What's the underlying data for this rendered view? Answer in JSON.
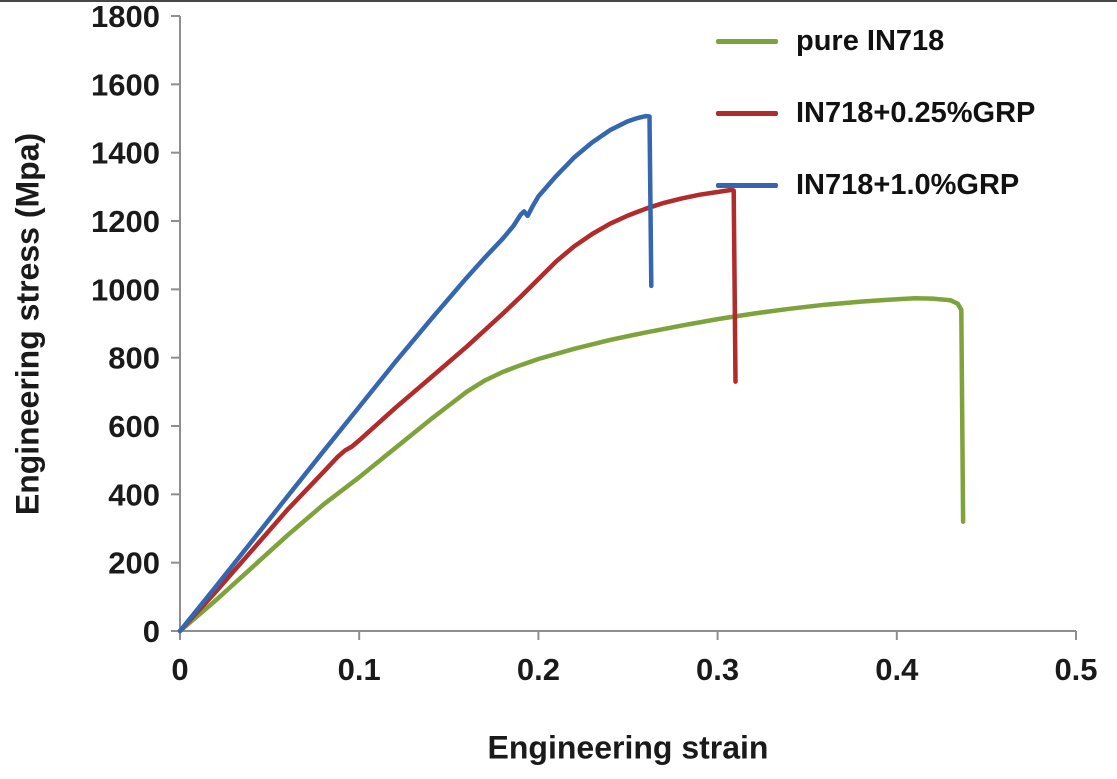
{
  "chart_data": {
    "type": "line",
    "title": "",
    "xlabel": "Engineering strain",
    "ylabel": "Engineering stress (Mpa)",
    "xlim": [
      0,
      0.5
    ],
    "ylim": [
      0,
      1800
    ],
    "x_tick_labels": [
      "0",
      "0.1",
      "0.2",
      "0.3",
      "0.4",
      "0.5"
    ],
    "x_tick_values": [
      0,
      0.1,
      0.2,
      0.3,
      0.4,
      0.5
    ],
    "y_ticks": [
      0,
      200,
      400,
      600,
      800,
      1000,
      1200,
      1400,
      1600,
      1800
    ],
    "grid": false,
    "legend_position": "top-right",
    "axis_color": "#8e8e8e",
    "text_color": "#1a1a1a",
    "series": [
      {
        "name": "pure IN718",
        "color": "#7FA33C",
        "points": [
          [
            0,
            0
          ],
          [
            0.02,
            90
          ],
          [
            0.04,
            185
          ],
          [
            0.06,
            280
          ],
          [
            0.08,
            370
          ],
          [
            0.1,
            450
          ],
          [
            0.12,
            535
          ],
          [
            0.14,
            620
          ],
          [
            0.15,
            660
          ],
          [
            0.16,
            700
          ],
          [
            0.17,
            733
          ],
          [
            0.18,
            758
          ],
          [
            0.19,
            778
          ],
          [
            0.2,
            796
          ],
          [
            0.22,
            826
          ],
          [
            0.24,
            852
          ],
          [
            0.26,
            874
          ],
          [
            0.28,
            894
          ],
          [
            0.3,
            913
          ],
          [
            0.32,
            929
          ],
          [
            0.34,
            943
          ],
          [
            0.36,
            955
          ],
          [
            0.38,
            964
          ],
          [
            0.4,
            971
          ],
          [
            0.41,
            974
          ],
          [
            0.42,
            973
          ],
          [
            0.43,
            968
          ],
          [
            0.434,
            958
          ],
          [
            0.436,
            940
          ],
          [
            0.437,
            320
          ]
        ]
      },
      {
        "name": "IN718+0.25%GRP",
        "color": "#B02B2A",
        "points": [
          [
            0,
            0
          ],
          [
            0.02,
            115
          ],
          [
            0.04,
            235
          ],
          [
            0.06,
            355
          ],
          [
            0.08,
            465
          ],
          [
            0.088,
            510
          ],
          [
            0.092,
            528
          ],
          [
            0.096,
            540
          ],
          [
            0.1,
            558
          ],
          [
            0.12,
            652
          ],
          [
            0.14,
            742
          ],
          [
            0.16,
            832
          ],
          [
            0.18,
            928
          ],
          [
            0.19,
            978
          ],
          [
            0.2,
            1030
          ],
          [
            0.21,
            1082
          ],
          [
            0.22,
            1126
          ],
          [
            0.23,
            1162
          ],
          [
            0.24,
            1192
          ],
          [
            0.25,
            1216
          ],
          [
            0.26,
            1236
          ],
          [
            0.27,
            1253
          ],
          [
            0.28,
            1266
          ],
          [
            0.29,
            1277
          ],
          [
            0.3,
            1285
          ],
          [
            0.305,
            1289
          ],
          [
            0.308,
            1291
          ],
          [
            0.309,
            1289
          ],
          [
            0.31,
            730
          ]
        ]
      },
      {
        "name": "IN718+1.0%GRP",
        "color": "#3566B0",
        "points": [
          [
            0,
            0
          ],
          [
            0.02,
            130
          ],
          [
            0.04,
            262
          ],
          [
            0.06,
            394
          ],
          [
            0.08,
            526
          ],
          [
            0.1,
            656
          ],
          [
            0.12,
            786
          ],
          [
            0.14,
            912
          ],
          [
            0.16,
            1034
          ],
          [
            0.17,
            1092
          ],
          [
            0.18,
            1148
          ],
          [
            0.186,
            1185
          ],
          [
            0.19,
            1218
          ],
          [
            0.192,
            1228
          ],
          [
            0.194,
            1215
          ],
          [
            0.197,
            1245
          ],
          [
            0.2,
            1272
          ],
          [
            0.21,
            1332
          ],
          [
            0.22,
            1386
          ],
          [
            0.23,
            1430
          ],
          [
            0.24,
            1466
          ],
          [
            0.25,
            1492
          ],
          [
            0.255,
            1501
          ],
          [
            0.26,
            1507
          ],
          [
            0.262,
            1506
          ],
          [
            0.263,
            1010
          ]
        ]
      }
    ]
  }
}
